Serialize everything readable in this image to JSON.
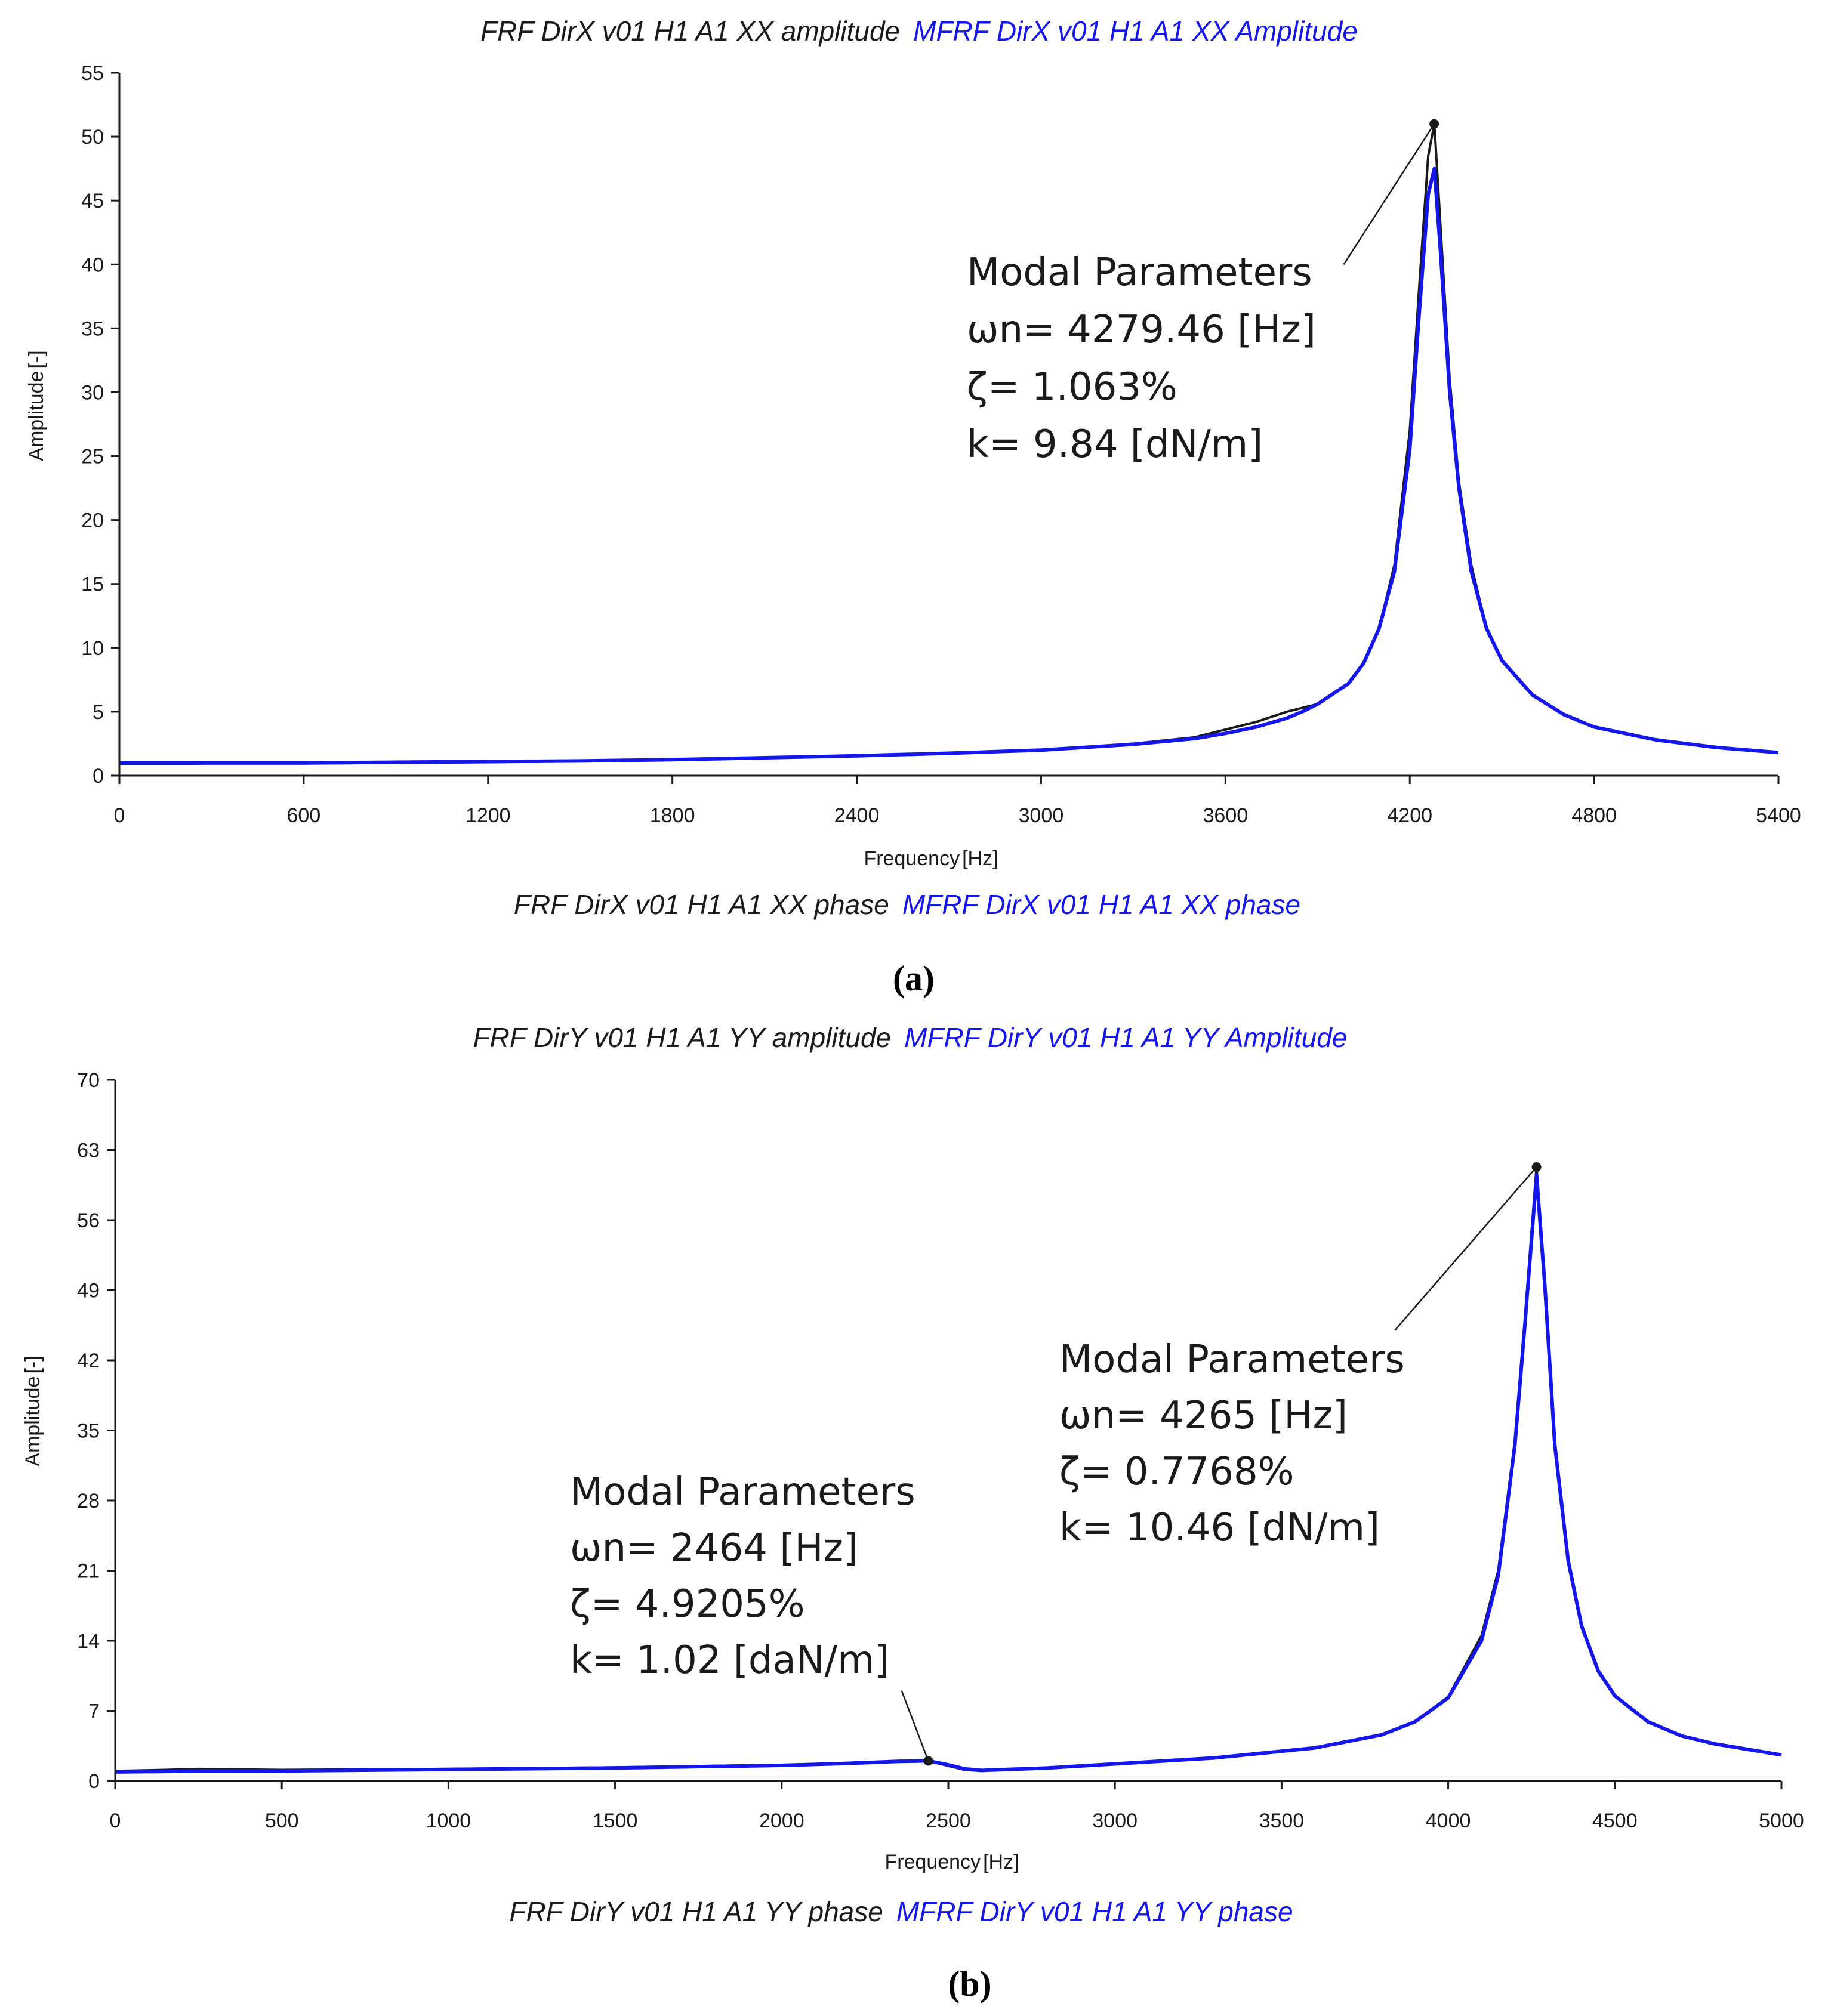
{
  "colors": {
    "measured": "#1a1a1a",
    "model": "#1515ee"
  },
  "chart_data": [
    {
      "type": "line",
      "panel_label": "(a)",
      "legend_top": {
        "measured": "FRF DirX v01 H1 A1 XX amplitude",
        "model": "MFRF DirX v01 H1 A1 XX Amplitude"
      },
      "legend_bottom": {
        "measured": "FRF DirX v01 H1 A1 XX phase",
        "model": "MFRF DirX v01 H1 A1 XX phase"
      },
      "xlabel": "Frequency",
      "xunit": "Hz",
      "ylabel": "Amplitude",
      "yunit": "-",
      "xlim": [
        0,
        5400
      ],
      "ylim": [
        0,
        55
      ],
      "xticks": [
        0,
        600,
        1200,
        1800,
        2400,
        3000,
        3600,
        4200,
        4800,
        5400
      ],
      "yticks": [
        0,
        5,
        10,
        15,
        20,
        25,
        30,
        35,
        40,
        45,
        50,
        55
      ],
      "series": [
        {
          "name": "FRF DirX v01 H1 A1 XX amplitude",
          "x": [
            0,
            300,
            600,
            900,
            1200,
            1500,
            1800,
            2100,
            2400,
            2700,
            3000,
            3300,
            3500,
            3600,
            3700,
            3800,
            3850,
            3900,
            4000,
            4050,
            4100,
            4150,
            4200,
            4230,
            4260,
            4280,
            4300,
            4330,
            4360,
            4400,
            4450,
            4500,
            4600,
            4700,
            4800,
            5000,
            5200,
            5400
          ],
          "y": [
            0.9,
            0.95,
            0.95,
            1.0,
            1.05,
            1.15,
            1.25,
            1.4,
            1.55,
            1.75,
            2.0,
            2.5,
            3.0,
            3.6,
            4.2,
            5.0,
            5.3,
            5.6,
            7.2,
            8.8,
            11.5,
            16.5,
            27.0,
            38.0,
            48.5,
            51.0,
            43.0,
            31.0,
            23.0,
            16.5,
            11.5,
            9.0,
            6.3,
            4.8,
            3.8,
            2.8,
            2.2,
            1.8
          ]
        },
        {
          "name": "MFRF DirX v01 H1 A1 XX Amplitude",
          "x": [
            0,
            300,
            600,
            900,
            1200,
            1500,
            1800,
            2100,
            2400,
            2700,
            3000,
            3300,
            3500,
            3600,
            3700,
            3800,
            3850,
            3900,
            4000,
            4050,
            4100,
            4150,
            4200,
            4230,
            4260,
            4280,
            4300,
            4330,
            4360,
            4400,
            4450,
            4500,
            4600,
            4700,
            4800,
            5000,
            5200,
            5400
          ],
          "y": [
            1.0,
            1.0,
            1.0,
            1.05,
            1.1,
            1.15,
            1.25,
            1.4,
            1.55,
            1.75,
            2.0,
            2.45,
            2.9,
            3.3,
            3.8,
            4.5,
            5.0,
            5.6,
            7.2,
            8.8,
            11.5,
            16.0,
            25.5,
            36.0,
            45.5,
            47.5,
            41.0,
            30.0,
            22.5,
            16.0,
            11.5,
            9.0,
            6.3,
            4.8,
            3.8,
            2.8,
            2.2,
            1.8
          ]
        }
      ],
      "annotations": [
        {
          "point": [
            4279.46,
            51
          ],
          "anchor": [
            3985,
            40
          ],
          "lines": [
            "Modal Parameters",
            "ωn= 4279.46 [Hz]",
            "ζ= 1.063%",
            "k= 9.84 [dN/m]"
          ]
        }
      ]
    },
    {
      "type": "line",
      "panel_label": "(b)",
      "legend_top": {
        "measured": "FRF DirY v01 H1 A1 YY amplitude",
        "model": "MFRF DirY v01 H1 A1 YY Amplitude"
      },
      "legend_bottom": {
        "measured": "FRF DirY v01 H1 A1 YY phase",
        "model": "MFRF DirY v01 H1 A1 YY phase"
      },
      "xlabel": "Frequency",
      "xunit": "Hz",
      "ylabel": "Amplitude",
      "yunit": "-",
      "xlim": [
        0,
        5000
      ],
      "ylim": [
        0,
        70
      ],
      "xticks": [
        0,
        500,
        1000,
        1500,
        2000,
        2500,
        3000,
        3500,
        4000,
        4500,
        5000
      ],
      "yticks": [
        0,
        7,
        14,
        21,
        28,
        35,
        42,
        49,
        56,
        63,
        70
      ],
      "series": [
        {
          "name": "FRF DirY v01 H1 A1 YY amplitude",
          "x": [
            0,
            150,
            250,
            500,
            1000,
            1500,
            2000,
            2200,
            2350,
            2440,
            2500,
            2550,
            2600,
            2800,
            3000,
            3300,
            3600,
            3800,
            3900,
            4000,
            4100,
            4150,
            4200,
            4230,
            4265,
            4290,
            4320,
            4360,
            4400,
            4450,
            4500,
            4600,
            4700,
            4800,
            5000
          ],
          "y": [
            1.0,
            1.1,
            1.2,
            1.1,
            1.2,
            1.35,
            1.6,
            1.8,
            2.0,
            2.0,
            1.5,
            1.1,
            1.0,
            1.3,
            1.7,
            2.3,
            3.3,
            4.6,
            5.9,
            8.4,
            14.5,
            21.0,
            34.0,
            46.0,
            61.3,
            50.0,
            34.0,
            22.0,
            15.5,
            11.0,
            8.5,
            5.9,
            4.5,
            3.7,
            2.6
          ]
        },
        {
          "name": "MFRF DirY v01 H1 A1 YY Amplitude",
          "x": [
            0,
            150,
            250,
            500,
            1000,
            1500,
            2000,
            2200,
            2350,
            2440,
            2500,
            2550,
            2600,
            2800,
            3000,
            3300,
            3600,
            3800,
            3900,
            4000,
            4100,
            4150,
            4200,
            4230,
            4265,
            4290,
            4320,
            4360,
            4400,
            4450,
            4500,
            4600,
            4700,
            4800,
            5000
          ],
          "y": [
            0.9,
            0.95,
            1.0,
            1.0,
            1.15,
            1.3,
            1.55,
            1.75,
            1.95,
            2.0,
            1.6,
            1.2,
            1.05,
            1.3,
            1.7,
            2.3,
            3.3,
            4.6,
            5.9,
            8.3,
            14.0,
            20.5,
            33.5,
            45.5,
            60.5,
            49.5,
            33.5,
            22.0,
            15.5,
            11.0,
            8.5,
            5.9,
            4.5,
            3.7,
            2.6
          ]
        }
      ],
      "annotations": [
        {
          "point": [
            4265,
            61.3
          ],
          "anchor": [
            3840,
            45
          ],
          "lines": [
            "Modal Parameters",
            "ωn= 4265 [Hz]",
            "ζ= 0.7768%",
            "k= 10.46 [dN/m]"
          ]
        },
        {
          "point": [
            2440,
            2.0
          ],
          "anchor": [
            2360,
            9
          ],
          "lines": [
            "Modal Parameters",
            "ωn= 2464 [Hz]",
            "ζ= 4.9205%",
            "k= 1.02 [daN/m]"
          ]
        }
      ]
    }
  ]
}
